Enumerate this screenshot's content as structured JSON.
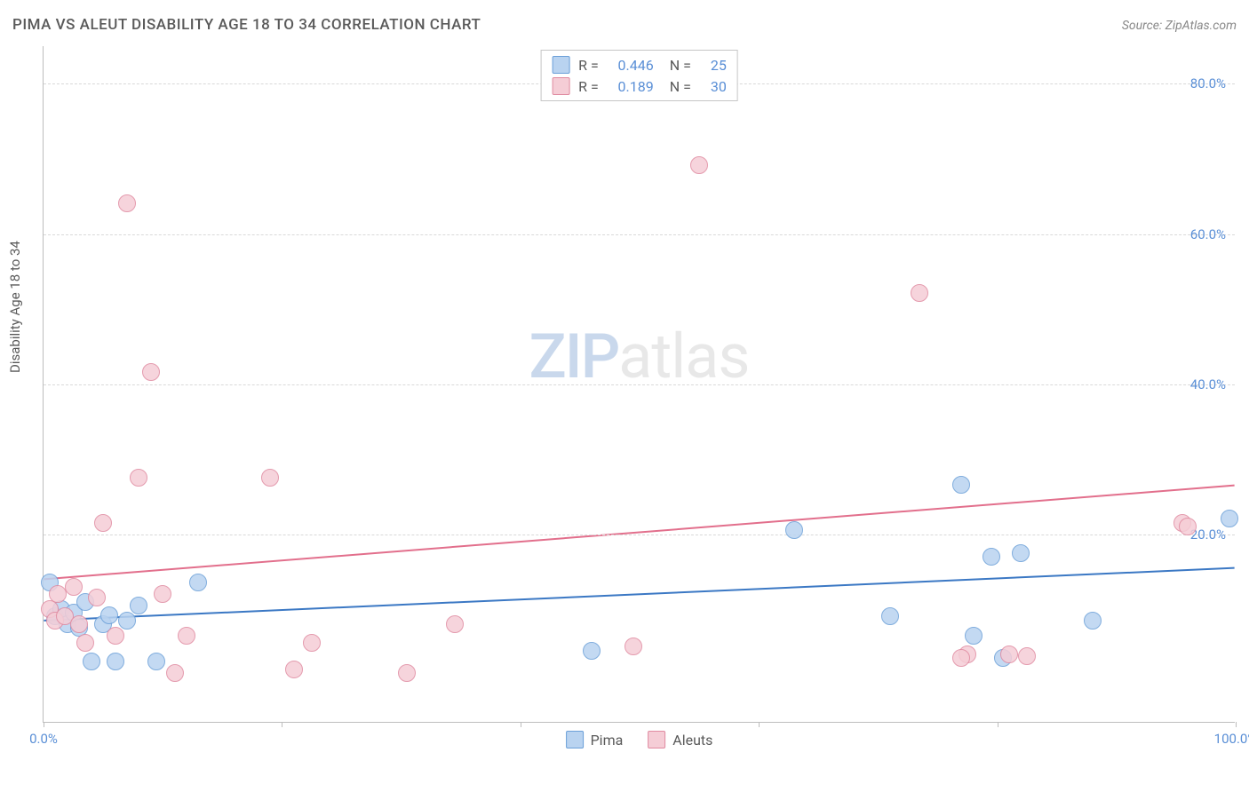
{
  "title": "PIMA VS ALEUT DISABILITY AGE 18 TO 34 CORRELATION CHART",
  "source": "Source: ZipAtlas.com",
  "y_axis_label": "Disability Age 18 to 34",
  "watermark": {
    "part1": "ZIP",
    "part2": "atlas"
  },
  "chart": {
    "type": "scatter",
    "background_color": "#ffffff",
    "grid_color": "#d9d9d9",
    "axis_color": "#bdbdbd",
    "tick_label_color": "#5a8fd6",
    "xlim": [
      0,
      100
    ],
    "ylim": [
      -5,
      85
    ],
    "y_gridlines": [
      20,
      40,
      60,
      80
    ],
    "y_tick_labels": [
      "20.0%",
      "40.0%",
      "60.0%",
      "80.0%"
    ],
    "x_ticks": [
      0,
      20,
      40,
      60,
      80,
      100
    ],
    "x_tick_labels": {
      "0": "0.0%",
      "100": "100.0%"
    },
    "point_radius": 10,
    "point_opacity": 0.85,
    "series": [
      {
        "name": "Pima",
        "fill": "#b9d3f0",
        "stroke": "#6a9fd8",
        "trend_color": "#3b78c4",
        "trend_width": 2,
        "trend": {
          "x1": 0,
          "y1": 8.5,
          "x2": 100,
          "y2": 15.5
        },
        "points": [
          [
            0.5,
            13.5
          ],
          [
            1.0,
            9.0
          ],
          [
            1.5,
            10.0
          ],
          [
            2.0,
            8.0
          ],
          [
            2.5,
            9.5
          ],
          [
            3.0,
            7.5
          ],
          [
            3.5,
            11.0
          ],
          [
            4.0,
            3.0
          ],
          [
            5.0,
            8.0
          ],
          [
            5.5,
            9.2
          ],
          [
            6.0,
            3.0
          ],
          [
            7.0,
            8.5
          ],
          [
            8.0,
            10.5
          ],
          [
            9.5,
            3.0
          ],
          [
            13.0,
            13.5
          ],
          [
            46.0,
            4.5
          ],
          [
            63.0,
            20.5
          ],
          [
            71.0,
            9.0
          ],
          [
            77.0,
            26.5
          ],
          [
            78.0,
            6.5
          ],
          [
            79.5,
            17.0
          ],
          [
            80.5,
            3.5
          ],
          [
            82.0,
            17.5
          ],
          [
            88.0,
            8.5
          ],
          [
            99.5,
            22.0
          ]
        ]
      },
      {
        "name": "Aleuts",
        "fill": "#f5cdd6",
        "stroke": "#e08aa0",
        "trend_color": "#e26f8c",
        "trend_width": 2,
        "trend": {
          "x1": 0,
          "y1": 14.0,
          "x2": 100,
          "y2": 26.5
        },
        "points": [
          [
            0.5,
            10.0
          ],
          [
            1.0,
            8.5
          ],
          [
            1.2,
            12.0
          ],
          [
            1.8,
            9.0
          ],
          [
            2.5,
            13.0
          ],
          [
            3.0,
            8.0
          ],
          [
            3.5,
            5.5
          ],
          [
            4.5,
            11.5
          ],
          [
            5.0,
            21.5
          ],
          [
            6.0,
            6.5
          ],
          [
            7.0,
            64.0
          ],
          [
            8.0,
            27.5
          ],
          [
            9.0,
            41.5
          ],
          [
            10.0,
            12.0
          ],
          [
            11.0,
            1.5
          ],
          [
            12.0,
            6.5
          ],
          [
            19.0,
            27.5
          ],
          [
            21.0,
            2.0
          ],
          [
            22.5,
            5.5
          ],
          [
            30.5,
            1.5
          ],
          [
            34.5,
            8.0
          ],
          [
            49.5,
            5.0
          ],
          [
            55.0,
            69.0
          ],
          [
            73.5,
            52.0
          ],
          [
            77.5,
            4.0
          ],
          [
            77.0,
            3.5
          ],
          [
            81.0,
            4.0
          ],
          [
            82.5,
            3.8
          ],
          [
            95.5,
            21.5
          ],
          [
            96.0,
            21.0
          ]
        ]
      }
    ]
  },
  "stats_box": {
    "rows": [
      {
        "swatch_fill": "#b9d3f0",
        "swatch_stroke": "#6a9fd8",
        "r_label": "R =",
        "r_value": "0.446",
        "n_label": "N =",
        "n_value": "25"
      },
      {
        "swatch_fill": "#f5cdd6",
        "swatch_stroke": "#e08aa0",
        "r_label": "R =",
        "r_value": "0.189",
        "n_label": "N =",
        "n_value": "30"
      }
    ]
  },
  "bottom_legend": [
    {
      "swatch_fill": "#b9d3f0",
      "swatch_stroke": "#6a9fd8",
      "label": "Pima"
    },
    {
      "swatch_fill": "#f5cdd6",
      "swatch_stroke": "#e08aa0",
      "label": "Aleuts"
    }
  ]
}
